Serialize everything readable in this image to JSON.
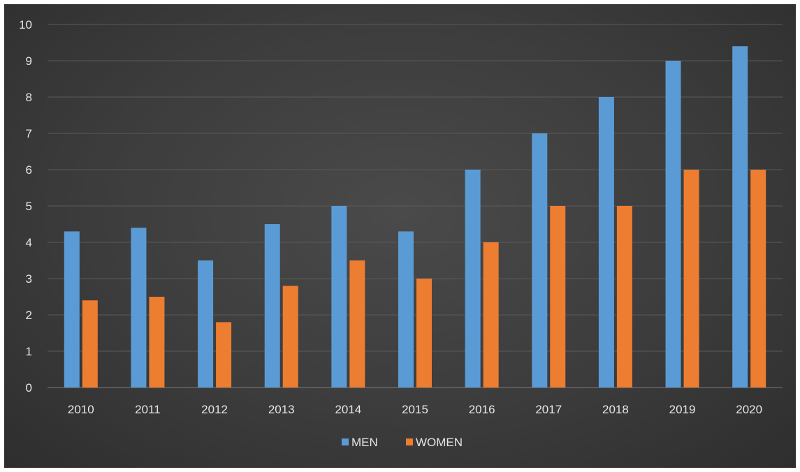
{
  "chart_data": {
    "type": "bar",
    "categories": [
      "2010",
      "2011",
      "2012",
      "2013",
      "2014",
      "2015",
      "2016",
      "2017",
      "2018",
      "2019",
      "2020"
    ],
    "series": [
      {
        "name": "MEN",
        "values": [
          4.3,
          4.4,
          3.5,
          4.5,
          5.0,
          4.3,
          6.0,
          7.0,
          8.0,
          9.0,
          9.4
        ],
        "color": "#5b9bd5"
      },
      {
        "name": "WOMEN",
        "values": [
          2.4,
          2.5,
          1.8,
          2.8,
          3.5,
          3.0,
          4.0,
          5.0,
          5.0,
          6.0,
          6.0
        ],
        "color": "#ed7d31"
      }
    ],
    "ylim": [
      0,
      10
    ],
    "yticks": [
      "0",
      "1",
      "2",
      "3",
      "4",
      "5",
      "6",
      "7",
      "8",
      "9",
      "10"
    ],
    "grid": true,
    "legend_position": "bottom",
    "background": "#3c3c3c"
  }
}
